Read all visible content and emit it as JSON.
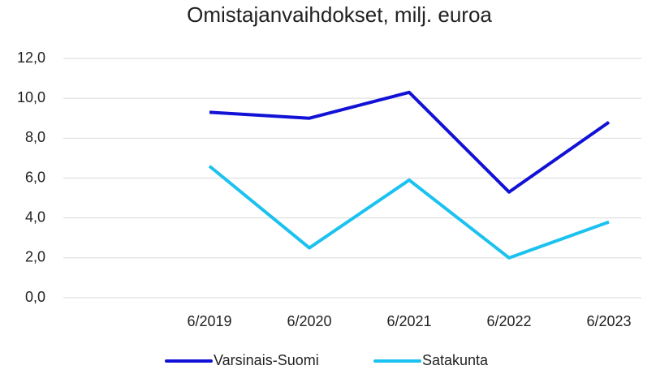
{
  "chart_data": {
    "type": "line",
    "title": "Omistajanvaihdokset, milj. euroa",
    "categories": [
      null,
      "6/2019",
      "6/2020",
      "6/2021",
      "6/2022",
      "6/2023"
    ],
    "series": [
      {
        "name": "Varsinais-Suomi",
        "color": "#1212d6",
        "values": [
          null,
          9.3,
          9.0,
          10.3,
          5.3,
          8.8
        ]
      },
      {
        "name": "Satakunta",
        "color": "#1cc2ef",
        "values": [
          null,
          6.6,
          2.5,
          5.9,
          2.0,
          3.8
        ]
      }
    ],
    "ylim": [
      0,
      12
    ],
    "yticks": [
      {
        "value": 0,
        "label": "0,0"
      },
      {
        "value": 2,
        "label": "2,0"
      },
      {
        "value": 4,
        "label": "4,0"
      },
      {
        "value": 6,
        "label": "6,0"
      },
      {
        "value": 8,
        "label": "8,0"
      },
      {
        "value": 10,
        "label": "10,0"
      },
      {
        "value": 12,
        "label": "12,0"
      }
    ],
    "grid": true,
    "legend": "bottom"
  }
}
